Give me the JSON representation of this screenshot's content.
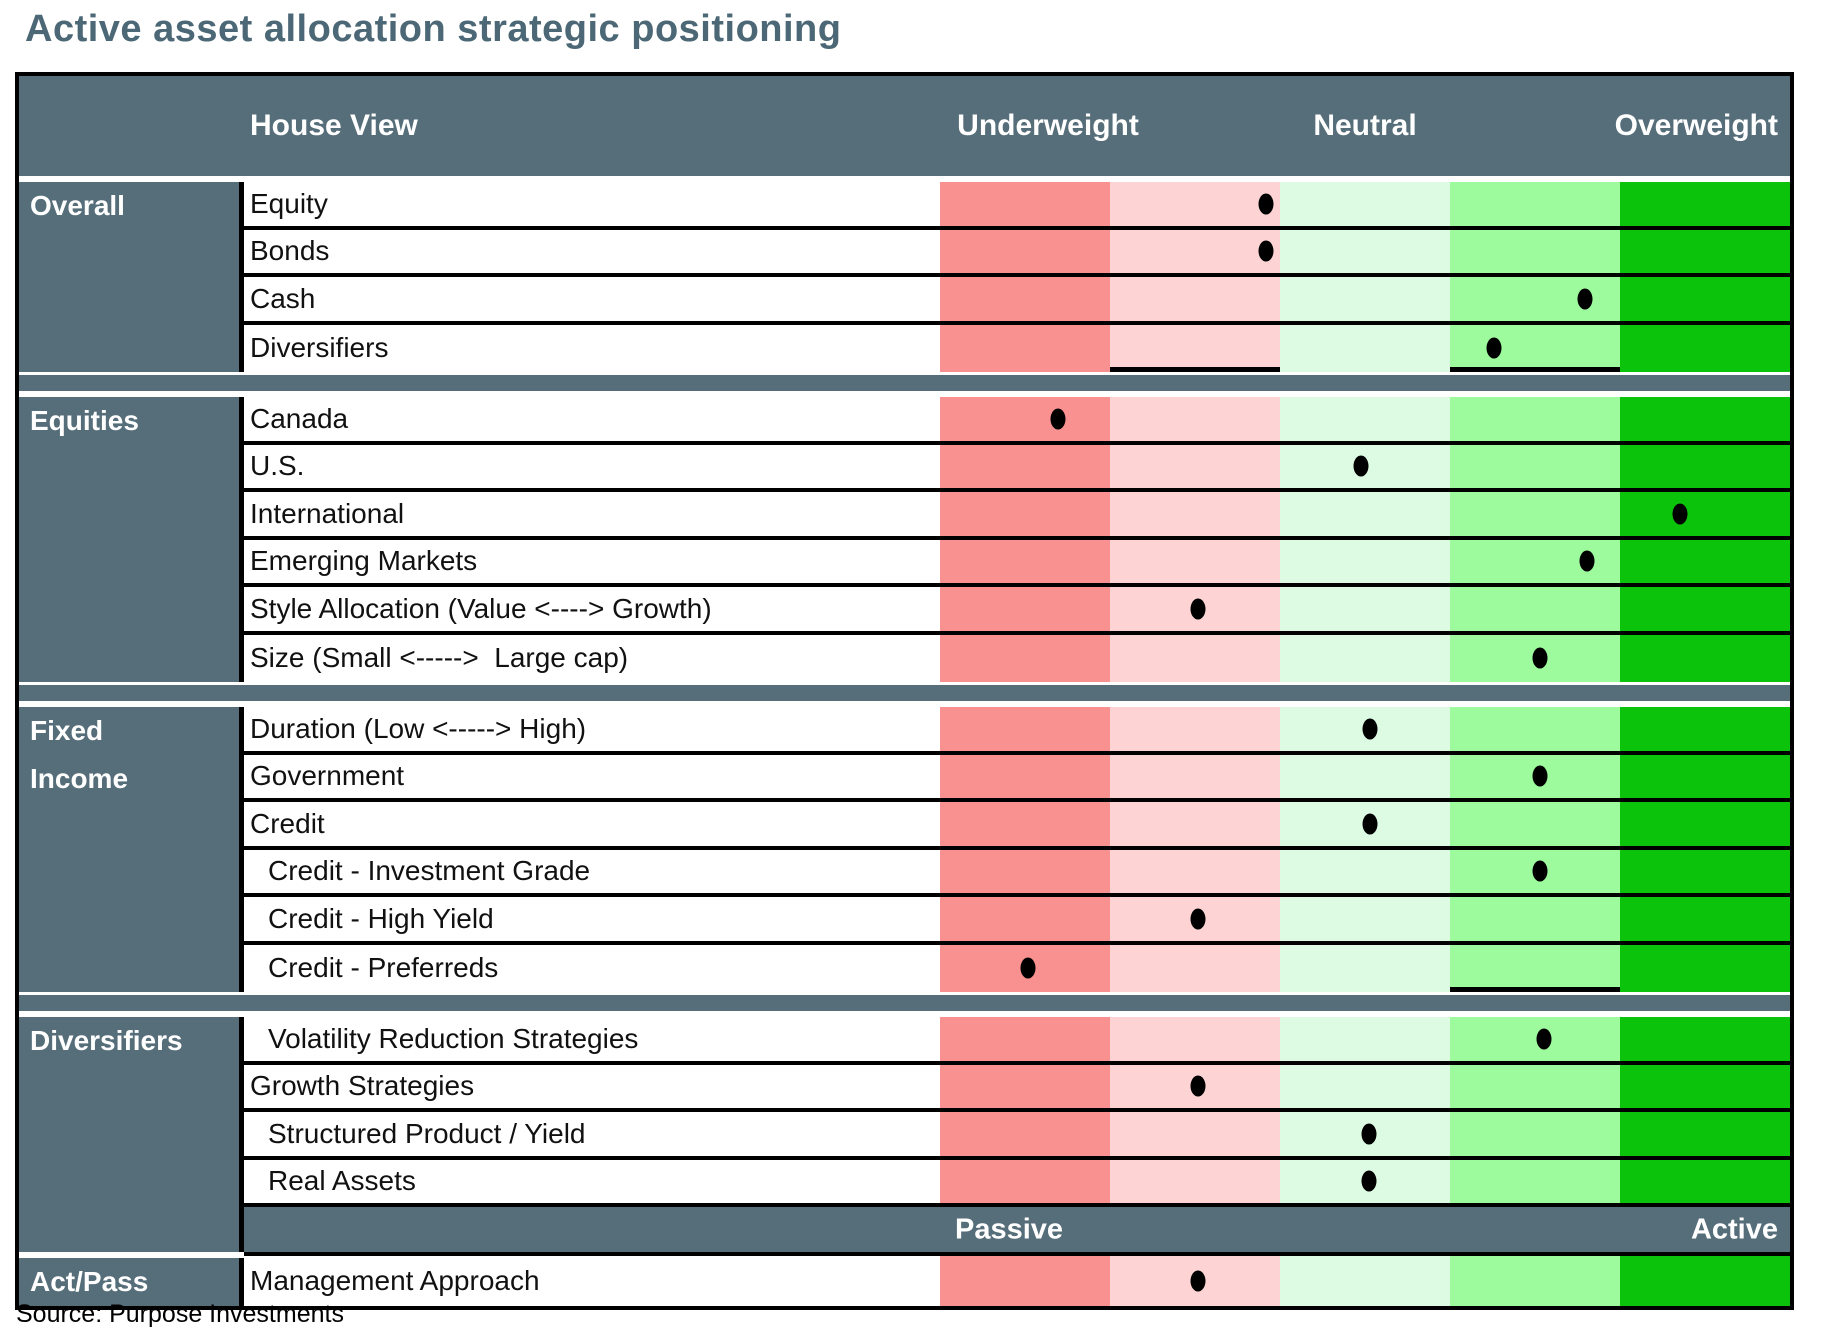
{
  "title": "Active asset allocation strategic positioning",
  "source": "Source: Purpose Investments",
  "header": {
    "house_view": "House View",
    "underweight": "Underweight",
    "neutral": "Neutral",
    "overweight": "Overweight"
  },
  "colors": {
    "slate": "#566e7a",
    "title_text": "#4c6876",
    "dot": "#000000",
    "bands": [
      "#fa9191",
      "#fdd3d3",
      "#ddfbe3",
      "#9dfa9d",
      "#0bc30b"
    ]
  },
  "chart_data": {
    "type": "table",
    "title": "Active asset allocation strategic positioning",
    "scale_labels": [
      "Underweight",
      "Neutral",
      "Overweight"
    ],
    "band_meanings": [
      "strong underweight",
      "underweight",
      "neutral",
      "overweight",
      "strong overweight"
    ],
    "position_scale_note": "position_pct is 0 (far underweight/passive) to 100 (far overweight/active)",
    "sections": [
      {
        "name_lines": [
          "Overall"
        ],
        "separator_after": true,
        "rows": [
          {
            "label": "Equity",
            "position_pct": 38.3,
            "band": 1
          },
          {
            "label": "Bonds",
            "position_pct": 38.3,
            "band": 1
          },
          {
            "label": "Cash",
            "position_pct": 75.9,
            "band": 3
          },
          {
            "label": "Diversifiers",
            "position_pct": 65.2,
            "band": 3,
            "underline_bands": [
              1,
              3
            ]
          }
        ]
      },
      {
        "name_lines": [
          "Equities"
        ],
        "separator_after": true,
        "rows": [
          {
            "label": "Canada",
            "position_pct": 13.9,
            "band": 0
          },
          {
            "label": "U.S.",
            "position_pct": 49.5,
            "band": 2
          },
          {
            "label": "International",
            "position_pct": 87.1,
            "band": 4
          },
          {
            "label": "Emerging Markets",
            "position_pct": 76.1,
            "band": 3
          },
          {
            "label": "Style Allocation (Value <----> Growth)",
            "position_pct": 30.3,
            "band": 1
          },
          {
            "label": "Size (Small <----->  Large cap)",
            "position_pct": 70.6,
            "band": 3
          }
        ]
      },
      {
        "name_lines": [
          "Fixed",
          "Income"
        ],
        "separator_after": true,
        "rows": [
          {
            "label": "Duration (Low <-----> High)",
            "position_pct": 50.6,
            "band": 2
          },
          {
            "label": "Government",
            "position_pct": 70.6,
            "band": 3
          },
          {
            "label": "Credit",
            "position_pct": 50.6,
            "band": 2
          },
          {
            "label": "Credit - Investment Grade",
            "position_pct": 70.6,
            "band": 3,
            "indent": true
          },
          {
            "label": "Credit - High Yield",
            "position_pct": 30.3,
            "band": 1,
            "indent": true
          },
          {
            "label": "Credit - Preferreds",
            "position_pct": 10.3,
            "band": 0,
            "indent": true,
            "underline_bands": [
              3
            ]
          }
        ]
      },
      {
        "name_lines": [
          "Diversifiers"
        ],
        "separator_after": false,
        "footer_bar": {
          "left": "Passive",
          "right": "Active"
        },
        "rows": [
          {
            "label": "Volatility Reduction Strategies",
            "position_pct": 71.0,
            "band": 3,
            "indent": true
          },
          {
            "label": "Growth Strategies",
            "position_pct": 30.4,
            "band": 1
          },
          {
            "label": "Structured Product / Yield",
            "position_pct": 50.5,
            "band": 2,
            "indent": true
          },
          {
            "label": "Real Assets",
            "position_pct": 50.5,
            "band": 2,
            "indent": true
          }
        ]
      },
      {
        "name_lines": [
          "Act/Pass"
        ],
        "separator_after": false,
        "actpass": true,
        "rows": [
          {
            "label": "Management Approach",
            "position_pct": 30.4,
            "band": 1
          }
        ]
      }
    ]
  }
}
